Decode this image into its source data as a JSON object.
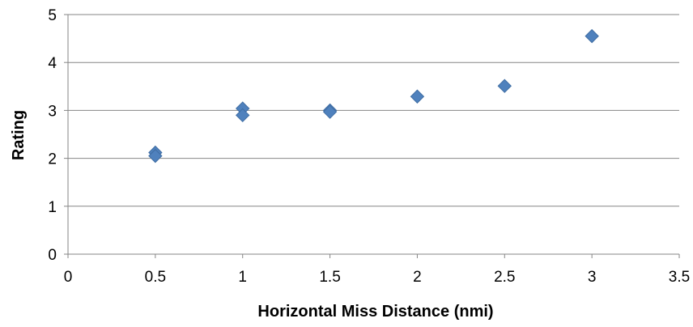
{
  "chart_data": {
    "type": "scatter",
    "xlabel": "Horizontal Miss Distance (nmi)",
    "ylabel": "Rating",
    "xlim": [
      0,
      3.5
    ],
    "ylim": [
      0,
      5
    ],
    "x_ticks": [
      "0",
      "0.5",
      "1",
      "1.5",
      "2",
      "2.5",
      "3",
      "3.5"
    ],
    "y_ticks": [
      "0",
      "1",
      "2",
      "3",
      "4",
      "5"
    ],
    "grid": "horizontal",
    "legend": "none",
    "marker": "diamond",
    "marker_color": "#4F81BD",
    "points": [
      {
        "x": 0.5,
        "y": 2.12
      },
      {
        "x": 0.5,
        "y": 2.05
      },
      {
        "x": 1.0,
        "y": 3.04
      },
      {
        "x": 1.0,
        "y": 2.9
      },
      {
        "x": 1.5,
        "y": 3.0
      },
      {
        "x": 1.5,
        "y": 2.97
      },
      {
        "x": 2.0,
        "y": 3.29
      },
      {
        "x": 2.5,
        "y": 3.51
      },
      {
        "x": 3.0,
        "y": 4.55
      }
    ]
  }
}
